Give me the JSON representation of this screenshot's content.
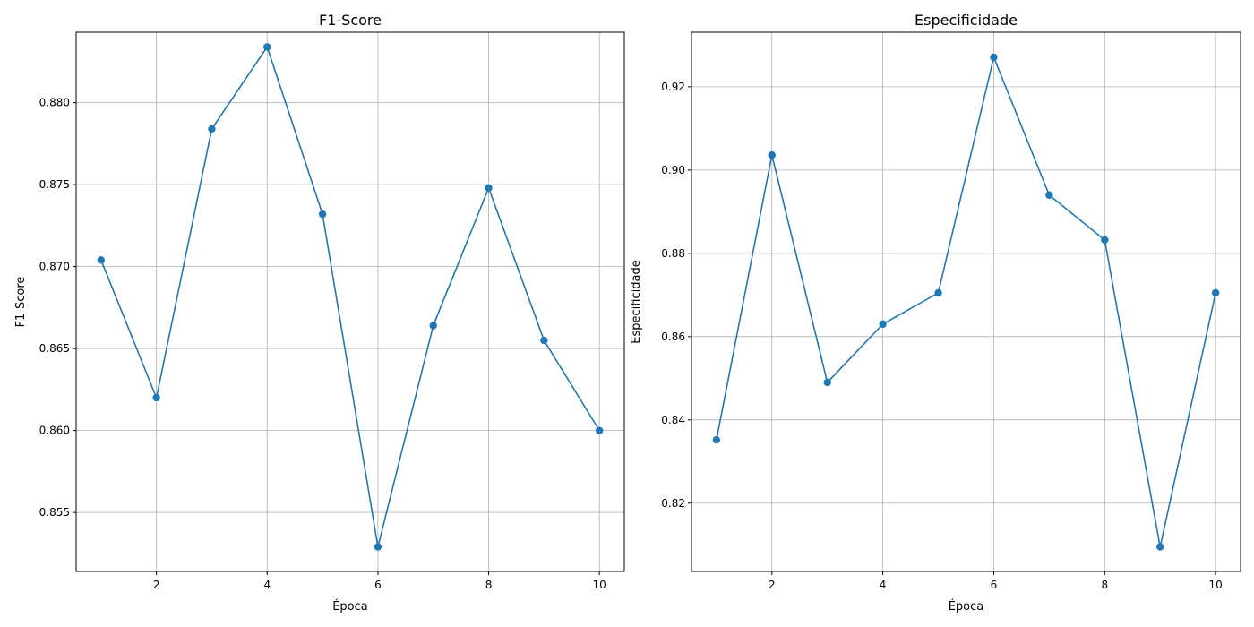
{
  "chart_data": [
    {
      "type": "line",
      "title": "F1-Score",
      "xlabel": "Época",
      "ylabel": "F1-Score",
      "x": [
        1,
        2,
        3,
        4,
        5,
        6,
        7,
        8,
        9,
        10
      ],
      "series": [
        {
          "values": [
            0.8704,
            0.862,
            0.8784,
            0.8834,
            0.8732,
            0.8529,
            0.8664,
            0.8748,
            0.8655,
            0.86
          ]
        }
      ],
      "xlim": [
        0.55,
        10.45
      ],
      "ylim": [
        0.8514,
        0.8843
      ],
      "xticks": [
        2,
        4,
        6,
        8,
        10
      ],
      "xtick_labels": [
        "2",
        "4",
        "6",
        "8",
        "10"
      ],
      "yticks": [
        0.855,
        0.86,
        0.865,
        0.87,
        0.875,
        0.88
      ],
      "ytick_labels": [
        "0.855",
        "0.860",
        "0.865",
        "0.870",
        "0.875",
        "0.880"
      ],
      "grid": true,
      "marker": "circle",
      "color": "#1f77b4"
    },
    {
      "type": "line",
      "title": "Especificidade",
      "xlabel": "Época",
      "ylabel": "Especificidade",
      "x": [
        1,
        2,
        3,
        4,
        5,
        6,
        7,
        8,
        9,
        10
      ],
      "series": [
        {
          "values": [
            0.8352,
            0.9036,
            0.849,
            0.863,
            0.8705,
            0.9271,
            0.894,
            0.8832,
            0.8095,
            0.8705
          ]
        }
      ],
      "xlim": [
        0.55,
        10.45
      ],
      "ylim": [
        0.8036,
        0.9331
      ],
      "xticks": [
        2,
        4,
        6,
        8,
        10
      ],
      "xtick_labels": [
        "2",
        "4",
        "6",
        "8",
        "10"
      ],
      "yticks": [
        0.82,
        0.84,
        0.86,
        0.88,
        0.9,
        0.92
      ],
      "ytick_labels": [
        "0.82",
        "0.84",
        "0.86",
        "0.88",
        "0.90",
        "0.92"
      ],
      "grid": true,
      "marker": "circle",
      "color": "#1f77b4"
    }
  ]
}
